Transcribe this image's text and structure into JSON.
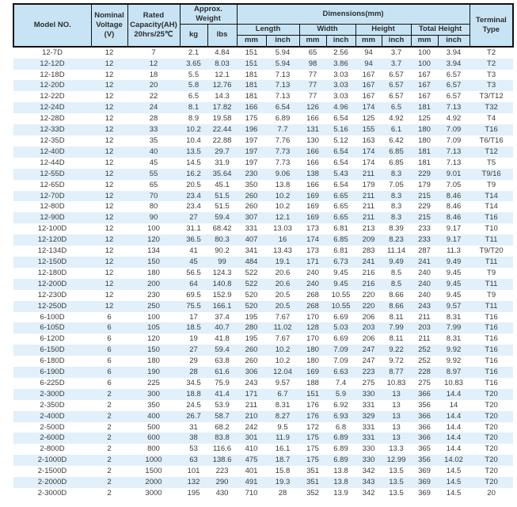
{
  "colors": {
    "header_bg": "#c8e4f4",
    "stripe_bg": "#e1f0fa",
    "border": "#111111",
    "text": "#3a3a3a"
  },
  "table": {
    "header": {
      "model": "Model NO.",
      "voltage": "Nominal Voltage (V)",
      "capacity": "Rated Capacity(AH) 20hrs/25℃",
      "weight": "Approx. Weight",
      "kg": "kg",
      "lbs": "lbs",
      "dimensions": "Dimensions(mm)",
      "length": "Length",
      "width": "Width",
      "height": "Height",
      "total_height": "Total Height",
      "mm": "mm",
      "inch": "inch",
      "terminal": "Terminal Type"
    },
    "columns": [
      "Model NO.",
      "Nominal Voltage (V)",
      "Rated Capacity(AH) 20hrs/25℃",
      "Weight kg",
      "Weight lbs",
      "Length mm",
      "Length inch",
      "Width mm",
      "Width inch",
      "Height mm",
      "Height inch",
      "Total Height mm",
      "Total Height inch",
      "Terminal Type"
    ],
    "rows": [
      [
        "12-7D",
        "12",
        "7",
        "2.1",
        "4.84",
        "151",
        "5.94",
        "65",
        "2.56",
        "94",
        "3.7",
        "100",
        "3.94",
        "T2"
      ],
      [
        "12-12D",
        "12",
        "12",
        "3.65",
        "8.03",
        "151",
        "5.94",
        "98",
        "3.86",
        "94",
        "3.7",
        "100",
        "3.94",
        "T2"
      ],
      [
        "12-18D",
        "12",
        "18",
        "5.5",
        "12.1",
        "181",
        "7.13",
        "77",
        "3.03",
        "167",
        "6.57",
        "167",
        "6.57",
        "T3"
      ],
      [
        "12-20D",
        "12",
        "20",
        "5.8",
        "12.76",
        "181",
        "7.13",
        "77",
        "3.03",
        "167",
        "6.57",
        "167",
        "6.57",
        "T3"
      ],
      [
        "12-22D",
        "12",
        "22",
        "6.5",
        "14.3",
        "181",
        "7.13",
        "77",
        "3.03",
        "167",
        "6.57",
        "167",
        "6.57",
        "T3/T12"
      ],
      [
        "12-24D",
        "12",
        "24",
        "8.1",
        "17.82",
        "166",
        "6.54",
        "126",
        "4.96",
        "174",
        "6.5",
        "181",
        "7.13",
        "T32"
      ],
      [
        "12-28D",
        "12",
        "28",
        "8.9",
        "19.58",
        "175",
        "6.89",
        "166",
        "6.54",
        "125",
        "4.92",
        "125",
        "4.92",
        "T4"
      ],
      [
        "12-33D",
        "12",
        "33",
        "10.2",
        "22.44",
        "196",
        "7.7",
        "131",
        "5.16",
        "155",
        "6.1",
        "180",
        "7.09",
        "T16"
      ],
      [
        "12-35D",
        "12",
        "35",
        "10.4",
        "22.88",
        "197",
        "7.76",
        "130",
        "5.12",
        "163",
        "6.42",
        "180",
        "7.09",
        "T6/T16"
      ],
      [
        "12-40D",
        "12",
        "40",
        "13.5",
        "29.7",
        "197",
        "7.73",
        "166",
        "6.54",
        "174",
        "6.85",
        "181",
        "7.13",
        "T12"
      ],
      [
        "12-44D",
        "12",
        "45",
        "14.5",
        "31.9",
        "197",
        "7.73",
        "166",
        "6.54",
        "174",
        "6.85",
        "181",
        "7.13",
        "T5"
      ],
      [
        "12-55D",
        "12",
        "55",
        "16.2",
        "35.64",
        "230",
        "9.06",
        "138",
        "5.43",
        "211",
        "8.3",
        "229",
        "9.01",
        "T9/16"
      ],
      [
        "12-65D",
        "12",
        "65",
        "20.5",
        "45.1",
        "350",
        "13.8",
        "166",
        "6.54",
        "179",
        "7.05",
        "179",
        "7.05",
        "T9"
      ],
      [
        "12-70D",
        "12",
        "70",
        "23.4",
        "51.5",
        "260",
        "10.2",
        "169",
        "6.65",
        "211",
        "8.3",
        "215",
        "8.46",
        "T14"
      ],
      [
        "12-80D",
        "12",
        "80",
        "23.4",
        "51.5",
        "260",
        "10.2",
        "169",
        "6.65",
        "211",
        "8.3",
        "229",
        "8.46",
        "T14"
      ],
      [
        "12-90D",
        "12",
        "90",
        "27",
        "59.4",
        "307",
        "12.1",
        "169",
        "6.65",
        "211",
        "8.3",
        "215",
        "8.46",
        "T16"
      ],
      [
        "12-100D",
        "12",
        "100",
        "31.1",
        "68.42",
        "331",
        "13.03",
        "173",
        "6.81",
        "213",
        "8.39",
        "233",
        "9.17",
        "T10"
      ],
      [
        "12-120D",
        "12",
        "120",
        "36.5",
        "80.3",
        "407",
        "16",
        "174",
        "6.85",
        "209",
        "8.23",
        "233",
        "9.17",
        "T11"
      ],
      [
        "12-134D",
        "12",
        "134",
        "41",
        "90.2",
        "341",
        "13.43",
        "173",
        "6.81",
        "283",
        "11.14",
        "287",
        "11.3",
        "T9/T20"
      ],
      [
        "12-150D",
        "12",
        "150",
        "45",
        "99",
        "484",
        "19.1",
        "171",
        "6.73",
        "241",
        "9.49",
        "241",
        "9.49",
        "T11"
      ],
      [
        "12-180D",
        "12",
        "180",
        "56.5",
        "124.3",
        "522",
        "20.6",
        "240",
        "9.45",
        "216",
        "8.5",
        "240",
        "9.45",
        "T9"
      ],
      [
        "12-200D",
        "12",
        "200",
        "64",
        "140.8",
        "522",
        "20.6",
        "240",
        "9.45",
        "216",
        "8.5",
        "240",
        "9.45",
        "T11"
      ],
      [
        "12-230D",
        "12",
        "230",
        "69.5",
        "152.9",
        "520",
        "20.5",
        "268",
        "10.55",
        "220",
        "8.66",
        "240",
        "9.45",
        "T9"
      ],
      [
        "12-250D",
        "12",
        "250",
        "75.5",
        "166.1",
        "520",
        "20.5",
        "268",
        "10.55",
        "220",
        "8.66",
        "243",
        "9.57",
        "T11"
      ],
      [
        "6-100D",
        "6",
        "100",
        "17",
        "37.4",
        "195",
        "7.67",
        "170",
        "6.69",
        "206",
        "8.11",
        "211",
        "8.31",
        "T16"
      ],
      [
        "6-105D",
        "6",
        "105",
        "18.5",
        "40.7",
        "280",
        "11.02",
        "128",
        "5.03",
        "203",
        "7.99",
        "203",
        "7.99",
        "T16"
      ],
      [
        "6-120D",
        "6",
        "120",
        "19",
        "41.8",
        "195",
        "7.67",
        "170",
        "6.69",
        "206",
        "8.11",
        "211",
        "8.31",
        "T16"
      ],
      [
        "6-150D",
        "6",
        "150",
        "27",
        "59.4",
        "260",
        "10.2",
        "180",
        "7.09",
        "247",
        "9.22",
        "252",
        "9.92",
        "T16"
      ],
      [
        "6-180D",
        "6",
        "180",
        "29",
        "63.8",
        "260",
        "10.2",
        "180",
        "7.09",
        "247",
        "9.72",
        "252",
        "9.92",
        "T16"
      ],
      [
        "6-190D",
        "6",
        "190",
        "28",
        "61.6",
        "306",
        "12.04",
        "169",
        "6.63",
        "223",
        "8.77",
        "228",
        "8.97",
        "T16"
      ],
      [
        "6-225D",
        "6",
        "225",
        "34.5",
        "75.9",
        "243",
        "9.57",
        "188",
        "7.4",
        "275",
        "10.83",
        "275",
        "10.83",
        "T16"
      ],
      [
        "2-300D",
        "2",
        "300",
        "18.8",
        "41.4",
        "171",
        "6.7",
        "151",
        "5.9",
        "330",
        "13",
        "366",
        "14.4",
        "T20"
      ],
      [
        "2-350D",
        "2",
        "350",
        "24.5",
        "53.9",
        "211",
        "8.31",
        "176",
        "6.92",
        "331",
        "13",
        "356",
        "14",
        "T20"
      ],
      [
        "2-400D",
        "2",
        "400",
        "26.7",
        "58.7",
        "210",
        "8.27",
        "176",
        "6.93",
        "329",
        "13",
        "366",
        "14.4",
        "T20"
      ],
      [
        "2-500D",
        "2",
        "500",
        "31",
        "68.2",
        "242",
        "9.5",
        "172",
        "6.8",
        "331",
        "13",
        "366",
        "14.4",
        "T20"
      ],
      [
        "2-600D",
        "2",
        "600",
        "38",
        "83.8",
        "301",
        "11.9",
        "175",
        "6.89",
        "331",
        "13",
        "366",
        "14.4",
        "T20"
      ],
      [
        "2-800D",
        "2",
        "800",
        "53",
        "116.6",
        "410",
        "16.1",
        "175",
        "6.89",
        "330",
        "13.3",
        "365",
        "14.4",
        "T20"
      ],
      [
        "2-1000D",
        "2",
        "1000",
        "63",
        "138.6",
        "475",
        "18.7",
        "175",
        "6.89",
        "330",
        "12.99",
        "356",
        "14.02",
        "T20"
      ],
      [
        "2-1500D",
        "2",
        "1500",
        "101",
        "223",
        "401",
        "15.8",
        "351",
        "13.8",
        "342",
        "13.5",
        "369",
        "14.5",
        "T20"
      ],
      [
        "2-2000D",
        "2",
        "2000",
        "132",
        "290",
        "491",
        "19.3",
        "351",
        "13.8",
        "343",
        "13.5",
        "369",
        "14.5",
        "T20"
      ],
      [
        "2-3000D",
        "2",
        "3000",
        "195",
        "430",
        "710",
        "28",
        "352",
        "13.9",
        "342",
        "13.5",
        "369",
        "14.5",
        "20"
      ]
    ]
  }
}
